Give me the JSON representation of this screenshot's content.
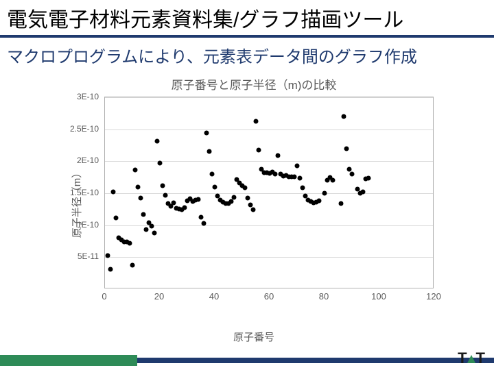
{
  "header": {
    "title": "電気電子材料元素資料集/グラフ描画ツール",
    "subtitle": "マクロプログラムにより、元素表データ間のグラフ作成",
    "title_color": "#000000",
    "subtitle_color": "#1f3a6e",
    "underline_color": "#1f3a6e"
  },
  "chart": {
    "type": "scatter",
    "title": "原子番号と原子半径（m)の比較",
    "xlabel": "原子番号",
    "ylabel": "原子半径（m）",
    "title_fontsize": 17,
    "label_fontsize": 15,
    "tick_fontsize": 12,
    "text_color": "#595959",
    "background_color": "#ffffff",
    "border_color": "#b0b0b0",
    "grid_color": "#d9d9d9",
    "marker_color": "#000000",
    "marker_size": 7,
    "xlim": [
      0,
      120
    ],
    "ylim": [
      0,
      3e-10
    ],
    "xticks": [
      0,
      20,
      40,
      60,
      80,
      100,
      120
    ],
    "xtick_labels": [
      "0",
      "20",
      "40",
      "60",
      "80",
      "100",
      "120"
    ],
    "yticks": [
      5e-11,
      1e-10,
      1.5e-10,
      2e-10,
      2.5e-10,
      3e-10
    ],
    "ytick_labels": [
      "5E-11",
      "1E-10",
      "1.5E-10",
      "2E-10",
      "2.5E-10",
      "3E-10"
    ],
    "data": {
      "x": [
        1,
        2,
        3,
        4,
        5,
        6,
        7,
        8,
        9,
        10,
        11,
        12,
        13,
        14,
        15,
        16,
        17,
        18,
        19,
        20,
        21,
        22,
        23,
        24,
        25,
        26,
        27,
        28,
        29,
        30,
        31,
        32,
        33,
        34,
        35,
        36,
        37,
        38,
        39,
        40,
        41,
        42,
        43,
        44,
        45,
        46,
        47,
        48,
        49,
        50,
        51,
        52,
        53,
        54,
        55,
        56,
        57,
        58,
        59,
        60,
        61,
        62,
        63,
        64,
        65,
        66,
        67,
        68,
        69,
        70,
        71,
        72,
        73,
        74,
        75,
        76,
        77,
        78,
        80,
        81,
        82,
        83,
        86,
        87,
        88,
        89,
        90,
        92,
        93,
        94,
        95,
        96
      ],
      "y": [
        5.3e-11,
        3.1e-11,
        1.52e-10,
        1.11e-10,
        8e-11,
        7.7e-11,
        7.4e-11,
        7.4e-11,
        7.2e-11,
        3.8e-11,
        1.86e-10,
        1.6e-10,
        1.43e-10,
        1.17e-10,
        9.3e-11,
        1.04e-10,
        9.9e-11,
        8.8e-11,
        2.31e-10,
        1.97e-10,
        1.62e-10,
        1.47e-10,
        1.34e-10,
        1.3e-10,
        1.35e-10,
        1.26e-10,
        1.25e-10,
        1.24e-10,
        1.28e-10,
        1.38e-10,
        1.41e-10,
        1.37e-10,
        1.39e-10,
        1.4e-10,
        1.12e-10,
        1.03e-10,
        2.44e-10,
        2.15e-10,
        1.8e-10,
        1.6e-10,
        1.46e-10,
        1.39e-10,
        1.36e-10,
        1.34e-10,
        1.34e-10,
        1.37e-10,
        1.44e-10,
        1.71e-10,
        1.66e-10,
        1.62e-10,
        1.59e-10,
        1.42e-10,
        1.32e-10,
        1.24e-10,
        2.62e-10,
        2.17e-10,
        1.87e-10,
        1.818e-10,
        1.824e-10,
        1.814e-10,
        1.834e-10,
        1.804e-10,
        2.084e-10,
        1.804e-10,
        1.773e-10,
        1.781e-10,
        1.762e-10,
        1.761e-10,
        1.759e-10,
        1.933e-10,
        1.738e-10,
        1.59e-10,
        1.46e-10,
        1.39e-10,
        1.37e-10,
        1.35e-10,
        1.357e-10,
        1.387e-10,
        1.5e-10,
        1.7e-10,
        1.75e-10,
        1.7e-10,
        1.34e-10,
        2.7e-10,
        2.2e-10,
        1.878e-10,
        1.798e-10,
        1.56e-10,
        1.503e-10,
        1.523e-10,
        1.73e-10,
        1.74e-10
      ]
    }
  },
  "footer": {
    "bar_primary": "#1f3a6e",
    "bar_accent": "#2e8b57",
    "logo_text_left": "T",
    "logo_text_right": "T",
    "logo_color": "#1a1a1a"
  }
}
